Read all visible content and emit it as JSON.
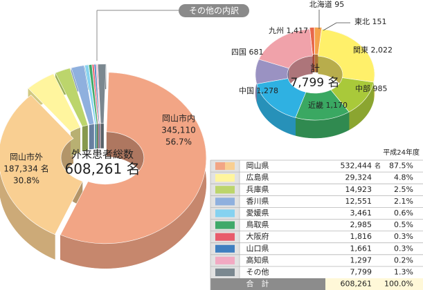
{
  "chart_data": [
    {
      "type": "donut",
      "center_title": "外来患者総数",
      "center_value": "608,261 名",
      "callout": "その他の内訳",
      "categories": [
        "岡山市内",
        "岡山市外",
        null,
        null,
        null,
        null,
        null,
        null,
        null,
        null,
        null
      ],
      "values": [
        345110,
        187334,
        29324,
        14923,
        12551,
        3461,
        2985,
        1816,
        1661,
        1297,
        7799
      ],
      "value_labels": [
        "345,110",
        "187,334 名",
        null,
        null,
        null,
        null,
        null,
        null,
        null,
        null,
        null
      ],
      "percent_labels": [
        "56.7%",
        "30.8%",
        null,
        null,
        null,
        null,
        null,
        null,
        null,
        null,
        null
      ],
      "colors": [
        "#f2a585",
        "#f9cf92",
        "#fff59e",
        "#bcd56c",
        "#8fb0de",
        "#86d2f0",
        "#3fa96a",
        "#e85c6c",
        "#3f7fc0",
        "#f2a9c2",
        "#7b8890"
      ]
    },
    {
      "type": "donut",
      "center_title": "計",
      "center_value": "7,799 名",
      "categories": [
        "北海道",
        "東北",
        "関東",
        "中部",
        "近畿",
        "中国",
        "四国",
        "九州"
      ],
      "values": [
        95,
        151,
        2022,
        985,
        1170,
        1278,
        681,
        1417
      ],
      "value_labels": [
        "95",
        "151",
        "2,022",
        "985",
        "1,170",
        "1,278",
        "681",
        "1,417"
      ],
      "colors": [
        "#e8674a",
        "#f5a24a",
        "#fff06a",
        "#a9c93a",
        "#3aa862",
        "#2fb1e2",
        "#9a92c2",
        "#f0a2aa"
      ]
    }
  ],
  "table": {
    "title": "平成24年度",
    "rows": [
      {
        "colors": [
          "#f2a585",
          "#f9cf92"
        ],
        "name": "岡山県",
        "count": "532,444",
        "unit": "名",
        "percent": "87.5%"
      },
      {
        "colors": [
          "#fff59e"
        ],
        "name": "広島県",
        "count": "29,324",
        "percent": "4.8%"
      },
      {
        "colors": [
          "#bcd56c"
        ],
        "name": "兵庫県",
        "count": "14,923",
        "percent": "2.5%"
      },
      {
        "colors": [
          "#8fb0de"
        ],
        "name": "香川県",
        "count": "12,551",
        "percent": "2.1%"
      },
      {
        "colors": [
          "#86d2f0"
        ],
        "name": "愛媛県",
        "count": "3,461",
        "percent": "0.6%"
      },
      {
        "colors": [
          "#3fa96a"
        ],
        "name": "鳥取県",
        "count": "2,985",
        "percent": "0.5%"
      },
      {
        "colors": [
          "#e85c6c"
        ],
        "name": "大阪府",
        "count": "1,816",
        "percent": "0.3%"
      },
      {
        "colors": [
          "#3f7fc0"
        ],
        "name": "山口県",
        "count": "1,661",
        "percent": "0.3%"
      },
      {
        "colors": [
          "#f2a9c2"
        ],
        "name": "高知県",
        "count": "1,297",
        "percent": "0.2%"
      },
      {
        "colors": [
          "#7b8890"
        ],
        "name": "その他",
        "count": "7,799",
        "percent": "1.3%"
      }
    ],
    "total": {
      "name": "合　計",
      "count": "608,261",
      "percent": "100.0%"
    }
  }
}
